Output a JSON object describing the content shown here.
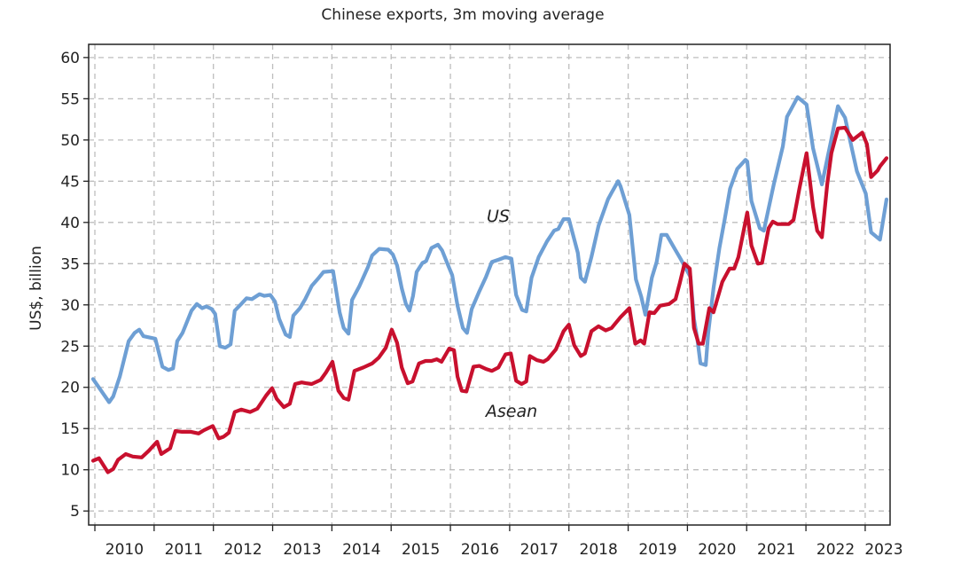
{
  "chart_data": {
    "type": "line",
    "title": "Chinese exports, 3m moving average",
    "xlabel": "",
    "ylabel": "US$, billion",
    "x_unit": "years since Jan 2010",
    "xlim": [
      -0.105,
      13.42
    ],
    "ylim": [
      3.3,
      61.6
    ],
    "yticks": [
      5,
      10,
      15,
      20,
      25,
      30,
      35,
      40,
      45,
      50,
      55,
      60
    ],
    "xtick_labels": [
      "2010",
      "2011",
      "2012",
      "2013",
      "2014",
      "2015",
      "2016",
      "2017",
      "2018",
      "2019",
      "2020",
      "2021",
      "2022",
      "2023"
    ],
    "grid": true,
    "series": [
      {
        "name": "US",
        "color": "#6e9fd4",
        "points": [
          [
            -0.03,
            21.0
          ],
          [
            0.24,
            18.2
          ],
          [
            0.31,
            18.9
          ],
          [
            0.42,
            21.3
          ],
          [
            0.57,
            25.6
          ],
          [
            0.67,
            26.6
          ],
          [
            0.75,
            27.0
          ],
          [
            0.82,
            26.2
          ],
          [
            1.02,
            25.9
          ],
          [
            1.14,
            22.5
          ],
          [
            1.24,
            22.1
          ],
          [
            1.32,
            22.3
          ],
          [
            1.39,
            25.6
          ],
          [
            1.48,
            26.6
          ],
          [
            1.63,
            29.3
          ],
          [
            1.72,
            30.1
          ],
          [
            1.81,
            29.6
          ],
          [
            1.88,
            29.8
          ],
          [
            1.97,
            29.5
          ],
          [
            2.03,
            28.9
          ],
          [
            2.11,
            25.0
          ],
          [
            2.2,
            24.8
          ],
          [
            2.29,
            25.2
          ],
          [
            2.36,
            29.3
          ],
          [
            2.47,
            30.1
          ],
          [
            2.56,
            30.8
          ],
          [
            2.65,
            30.7
          ],
          [
            2.78,
            31.3
          ],
          [
            2.86,
            31.1
          ],
          [
            2.96,
            31.2
          ],
          [
            3.04,
            30.4
          ],
          [
            3.11,
            28.3
          ],
          [
            3.22,
            26.4
          ],
          [
            3.29,
            26.1
          ],
          [
            3.35,
            28.7
          ],
          [
            3.46,
            29.6
          ],
          [
            3.55,
            30.7
          ],
          [
            3.66,
            32.3
          ],
          [
            3.78,
            33.3
          ],
          [
            3.86,
            34.0
          ],
          [
            4.02,
            34.1
          ],
          [
            4.13,
            29.1
          ],
          [
            4.2,
            27.2
          ],
          [
            4.28,
            26.5
          ],
          [
            4.34,
            30.6
          ],
          [
            4.46,
            32.2
          ],
          [
            4.61,
            34.6
          ],
          [
            4.68,
            36.0
          ],
          [
            4.8,
            36.8
          ],
          [
            4.95,
            36.7
          ],
          [
            5.03,
            36.1
          ],
          [
            5.1,
            34.8
          ],
          [
            5.18,
            32.0
          ],
          [
            5.25,
            30.1
          ],
          [
            5.31,
            29.3
          ],
          [
            5.37,
            31.1
          ],
          [
            5.43,
            34.0
          ],
          [
            5.53,
            35.1
          ],
          [
            5.59,
            35.3
          ],
          [
            5.68,
            36.9
          ],
          [
            5.79,
            37.3
          ],
          [
            5.86,
            36.6
          ],
          [
            5.95,
            35.0
          ],
          [
            6.03,
            33.6
          ],
          [
            6.12,
            29.9
          ],
          [
            6.21,
            27.2
          ],
          [
            6.28,
            26.6
          ],
          [
            6.36,
            29.5
          ],
          [
            6.48,
            31.5
          ],
          [
            6.6,
            33.4
          ],
          [
            6.7,
            35.2
          ],
          [
            6.82,
            35.5
          ],
          [
            6.93,
            35.8
          ],
          [
            7.03,
            35.6
          ],
          [
            7.11,
            31.2
          ],
          [
            7.21,
            29.4
          ],
          [
            7.28,
            29.2
          ],
          [
            7.37,
            33.3
          ],
          [
            7.49,
            35.8
          ],
          [
            7.63,
            37.7
          ],
          [
            7.75,
            39.0
          ],
          [
            7.82,
            39.2
          ],
          [
            7.91,
            40.4
          ],
          [
            8.0,
            40.4
          ],
          [
            8.15,
            36.3
          ],
          [
            8.2,
            33.3
          ],
          [
            8.27,
            32.8
          ],
          [
            8.38,
            35.8
          ],
          [
            8.5,
            39.6
          ],
          [
            8.66,
            42.8
          ],
          [
            8.72,
            43.6
          ],
          [
            8.83,
            45.0
          ],
          [
            8.87,
            44.4
          ],
          [
            9.02,
            40.9
          ],
          [
            9.13,
            33.1
          ],
          [
            9.22,
            31.0
          ],
          [
            9.29,
            28.8
          ],
          [
            9.4,
            33.3
          ],
          [
            9.48,
            35.2
          ],
          [
            9.56,
            38.5
          ],
          [
            9.65,
            38.5
          ],
          [
            9.77,
            37.0
          ],
          [
            9.89,
            35.5
          ],
          [
            9.99,
            34.2
          ],
          [
            10.05,
            33.4
          ],
          [
            10.11,
            28.3
          ],
          [
            10.17,
            25.7
          ],
          [
            10.22,
            22.9
          ],
          [
            10.31,
            22.7
          ],
          [
            10.35,
            26.5
          ],
          [
            10.44,
            32.0
          ],
          [
            10.54,
            36.9
          ],
          [
            10.63,
            40.4
          ],
          [
            10.72,
            44.1
          ],
          [
            10.84,
            46.5
          ],
          [
            10.98,
            47.6
          ],
          [
            11.01,
            47.4
          ],
          [
            11.08,
            42.6
          ],
          [
            11.22,
            39.3
          ],
          [
            11.29,
            39.0
          ],
          [
            11.46,
            44.7
          ],
          [
            11.61,
            49.2
          ],
          [
            11.68,
            52.8
          ],
          [
            11.86,
            55.2
          ],
          [
            12.01,
            54.3
          ],
          [
            12.12,
            49.0
          ],
          [
            12.27,
            44.6
          ],
          [
            12.42,
            49.8
          ],
          [
            12.54,
            54.1
          ],
          [
            12.66,
            52.7
          ],
          [
            12.86,
            46.2
          ],
          [
            13.01,
            43.5
          ],
          [
            13.1,
            38.8
          ],
          [
            13.25,
            37.9
          ],
          [
            13.36,
            42.8
          ]
        ]
      },
      {
        "name": "Asean",
        "color": "#c8102e",
        "points": [
          [
            -0.03,
            11.1
          ],
          [
            0.07,
            11.4
          ],
          [
            0.22,
            9.7
          ],
          [
            0.31,
            10.1
          ],
          [
            0.39,
            11.2
          ],
          [
            0.52,
            11.9
          ],
          [
            0.64,
            11.6
          ],
          [
            0.79,
            11.5
          ],
          [
            0.91,
            12.3
          ],
          [
            1.05,
            13.4
          ],
          [
            1.12,
            11.9
          ],
          [
            1.27,
            12.6
          ],
          [
            1.36,
            14.7
          ],
          [
            1.47,
            14.6
          ],
          [
            1.62,
            14.6
          ],
          [
            1.75,
            14.4
          ],
          [
            1.84,
            14.8
          ],
          [
            1.99,
            15.3
          ],
          [
            2.09,
            13.8
          ],
          [
            2.17,
            14.0
          ],
          [
            2.26,
            14.5
          ],
          [
            2.36,
            17.0
          ],
          [
            2.47,
            17.3
          ],
          [
            2.62,
            17.0
          ],
          [
            2.74,
            17.4
          ],
          [
            2.89,
            19.0
          ],
          [
            2.99,
            19.9
          ],
          [
            3.07,
            18.6
          ],
          [
            3.19,
            17.6
          ],
          [
            3.29,
            18.0
          ],
          [
            3.38,
            20.4
          ],
          [
            3.49,
            20.6
          ],
          [
            3.56,
            20.5
          ],
          [
            3.66,
            20.4
          ],
          [
            3.81,
            20.9
          ],
          [
            3.9,
            21.8
          ],
          [
            4.01,
            23.1
          ],
          [
            4.11,
            19.6
          ],
          [
            4.2,
            18.7
          ],
          [
            4.28,
            18.5
          ],
          [
            4.38,
            22.0
          ],
          [
            4.53,
            22.4
          ],
          [
            4.68,
            22.9
          ],
          [
            4.79,
            23.6
          ],
          [
            4.91,
            24.8
          ],
          [
            5.01,
            27.0
          ],
          [
            5.1,
            25.4
          ],
          [
            5.18,
            22.4
          ],
          [
            5.28,
            20.5
          ],
          [
            5.36,
            20.7
          ],
          [
            5.47,
            22.9
          ],
          [
            5.58,
            23.2
          ],
          [
            5.68,
            23.2
          ],
          [
            5.77,
            23.4
          ],
          [
            5.85,
            23.1
          ],
          [
            5.98,
            24.7
          ],
          [
            6.06,
            24.5
          ],
          [
            6.12,
            21.3
          ],
          [
            6.19,
            19.6
          ],
          [
            6.27,
            19.5
          ],
          [
            6.39,
            22.5
          ],
          [
            6.49,
            22.6
          ],
          [
            6.61,
            22.2
          ],
          [
            6.7,
            22.0
          ],
          [
            6.81,
            22.4
          ],
          [
            6.93,
            24.0
          ],
          [
            7.02,
            24.1
          ],
          [
            7.11,
            20.8
          ],
          [
            7.2,
            20.4
          ],
          [
            7.28,
            20.7
          ],
          [
            7.34,
            23.8
          ],
          [
            7.46,
            23.3
          ],
          [
            7.57,
            23.1
          ],
          [
            7.64,
            23.4
          ],
          [
            7.78,
            24.6
          ],
          [
            7.91,
            26.8
          ],
          [
            8.0,
            27.6
          ],
          [
            8.09,
            25.1
          ],
          [
            8.2,
            23.8
          ],
          [
            8.27,
            24.1
          ],
          [
            8.38,
            26.8
          ],
          [
            8.5,
            27.4
          ],
          [
            8.62,
            26.9
          ],
          [
            8.72,
            27.2
          ],
          [
            8.87,
            28.5
          ],
          [
            9.02,
            29.6
          ],
          [
            9.12,
            25.3
          ],
          [
            9.21,
            25.7
          ],
          [
            9.27,
            25.3
          ],
          [
            9.36,
            29.1
          ],
          [
            9.44,
            29.0
          ],
          [
            9.54,
            29.9
          ],
          [
            9.69,
            30.1
          ],
          [
            9.8,
            30.7
          ],
          [
            9.87,
            32.6
          ],
          [
            9.95,
            35.0
          ],
          [
            10.04,
            34.4
          ],
          [
            10.11,
            27.2
          ],
          [
            10.19,
            25.3
          ],
          [
            10.26,
            25.3
          ],
          [
            10.37,
            29.6
          ],
          [
            10.44,
            29.1
          ],
          [
            10.59,
            32.8
          ],
          [
            10.71,
            34.4
          ],
          [
            10.79,
            34.4
          ],
          [
            10.86,
            35.8
          ],
          [
            11.01,
            41.2
          ],
          [
            11.08,
            37.2
          ],
          [
            11.19,
            35.0
          ],
          [
            11.26,
            35.1
          ],
          [
            11.37,
            39.3
          ],
          [
            11.44,
            40.1
          ],
          [
            11.52,
            39.8
          ],
          [
            11.71,
            39.8
          ],
          [
            11.79,
            40.3
          ],
          [
            11.89,
            44.1
          ],
          [
            12.01,
            48.4
          ],
          [
            12.12,
            41.9
          ],
          [
            12.19,
            39.0
          ],
          [
            12.27,
            38.2
          ],
          [
            12.36,
            44.7
          ],
          [
            12.43,
            48.4
          ],
          [
            12.54,
            51.4
          ],
          [
            12.66,
            51.5
          ],
          [
            12.79,
            50.0
          ],
          [
            12.95,
            50.9
          ],
          [
            13.03,
            49.5
          ],
          [
            13.1,
            45.5
          ],
          [
            13.21,
            46.3
          ],
          [
            13.25,
            46.8
          ],
          [
            13.36,
            47.8
          ]
        ]
      }
    ],
    "annotations": [
      "US",
      "Asean"
    ]
  }
}
